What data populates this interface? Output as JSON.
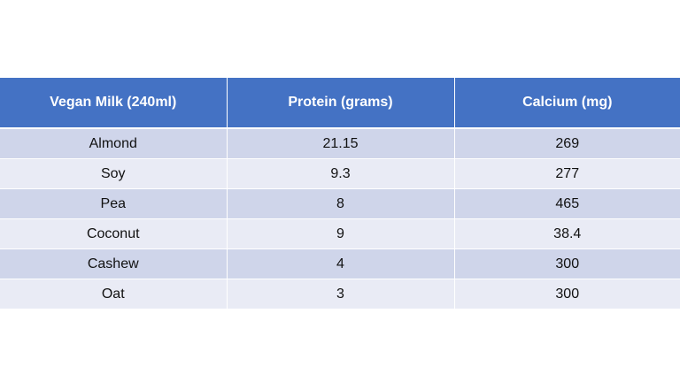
{
  "table": {
    "headers": [
      "Vegan Milk (240ml)",
      "Protein (grams)",
      "Calcium (mg)"
    ],
    "rows": [
      [
        "Almond",
        "21.15",
        "269"
      ],
      [
        "Soy",
        "9.3",
        "277"
      ],
      [
        "Pea",
        "8",
        "465"
      ],
      [
        "Coconut",
        "9",
        "38.4"
      ],
      [
        "Cashew",
        "4",
        "300"
      ],
      [
        "Oat",
        "3",
        "300"
      ]
    ]
  },
  "colors": {
    "header_bg": "#4472c4",
    "row_odd_bg": "#cfd5ea",
    "row_even_bg": "#e9ebf5",
    "header_text": "#ffffff"
  }
}
